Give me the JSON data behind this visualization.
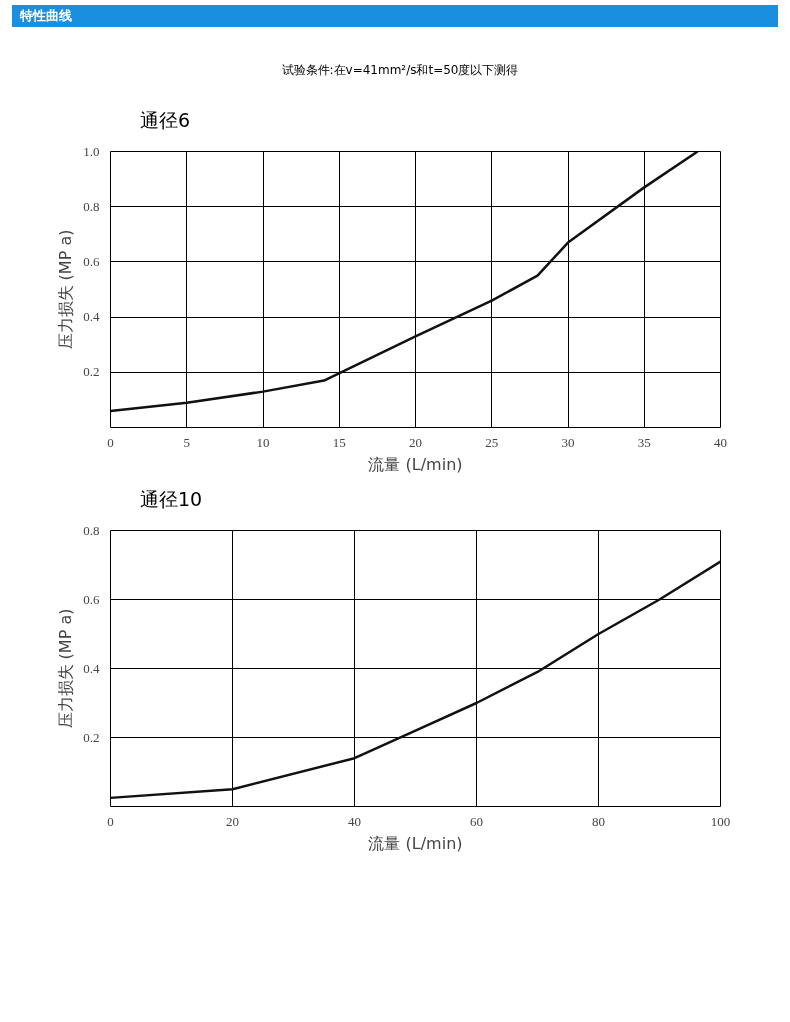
{
  "chart_data": [
    {
      "type": "line",
      "title": "通径6",
      "annotations": [
        "特性曲线",
        "试验条件:在v=41mm²/s和t=50度以下测得"
      ],
      "xlabel": "流量 (L/min)",
      "ylabel": "压力损失 (MP a)",
      "x": [
        0,
        5,
        10,
        14,
        20,
        25,
        28,
        30,
        35,
        38.5
      ],
      "series": [
        {
          "color": "#111111",
          "values": [
            0.06,
            0.09,
            0.13,
            0.17,
            0.33,
            0.46,
            0.55,
            0.67,
            0.87,
            1.0
          ]
        }
      ],
      "xlim": [
        0,
        40
      ],
      "xticks": [
        0,
        5,
        10,
        15,
        20,
        25,
        30,
        35,
        40
      ],
      "ylim": [
        0,
        1.0
      ],
      "yticks": [
        0.2,
        0.4,
        0.6,
        0.8,
        {
          "value": 1.0,
          "label": "1.0"
        }
      ],
      "grid": true,
      "marker": "none",
      "line_style": "solid"
    },
    {
      "type": "line",
      "title": "通径10",
      "xlabel": "流量 (L/min)",
      "ylabel": "压力损失 (MP a)",
      "x": [
        0,
        20,
        40,
        50,
        60,
        70,
        80,
        90,
        100
      ],
      "series": [
        {
          "color": "#111111",
          "values": [
            0.025,
            0.05,
            0.14,
            0.22,
            0.3,
            0.39,
            0.5,
            0.6,
            0.71
          ]
        }
      ],
      "xlim": [
        0,
        100
      ],
      "xticks": [
        0,
        20,
        40,
        60,
        80,
        100
      ],
      "ylim": [
        0,
        0.8
      ],
      "yticks": [
        0.2,
        0.4,
        0.6,
        0.8
      ],
      "grid": true,
      "marker": "none",
      "line_style": "solid"
    }
  ]
}
